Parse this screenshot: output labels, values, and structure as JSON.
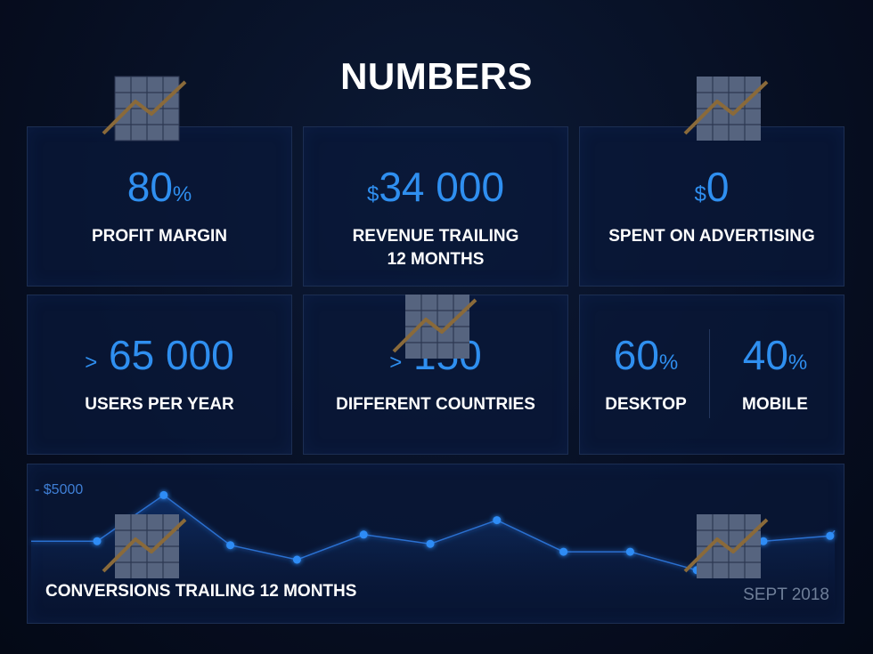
{
  "title": "NUMBERS",
  "stats": {
    "profit": {
      "value": "80",
      "unit": "%",
      "label": "PROFIT MARGIN"
    },
    "revenue": {
      "prefix": "$",
      "value": "34 000",
      "label_line1": "REVENUE TRAILING",
      "label_line2": "12 MONTHS"
    },
    "advertising": {
      "prefix": "$",
      "value": "0",
      "label": "SPENT ON ADVERTISING"
    },
    "users": {
      "prefix": ">",
      "value": "65 000",
      "label": "USERS PER YEAR"
    },
    "countries": {
      "prefix": ">",
      "value": "150",
      "label": "DIFFERENT COUNTRIES"
    },
    "desktop": {
      "value": "60",
      "unit": "%",
      "label": "DESKTOP"
    },
    "mobile": {
      "value": "40",
      "unit": "%",
      "label": "MOBILE"
    }
  },
  "conversions": {
    "label": "CONVERSIONS TRAILING 12 MONTHS",
    "date": "SEPT 2018",
    "axis_label": "- $5000"
  },
  "chart_data": {
    "type": "line",
    "x": [
      1,
      2,
      3,
      4,
      5,
      6,
      7,
      8,
      9,
      10,
      11,
      12
    ],
    "values": [
      3100,
      4850,
      2950,
      2400,
      3350,
      3000,
      3900,
      2700,
      2700,
      2000,
      3100,
      3300
    ],
    "ylim": [
      0,
      5000
    ],
    "ylabel": "- $5000",
    "title": "CONVERSIONS TRAILING 12 MONTHS",
    "grid": false
  },
  "colors": {
    "accent": "#2f8ff0",
    "card_bg": "#0a183a",
    "card_border": "#1c2e52",
    "icon_line": "#8a6a3a",
    "icon_grid": "#5a6a86"
  },
  "icons": [
    "chart-growth-icon"
  ]
}
